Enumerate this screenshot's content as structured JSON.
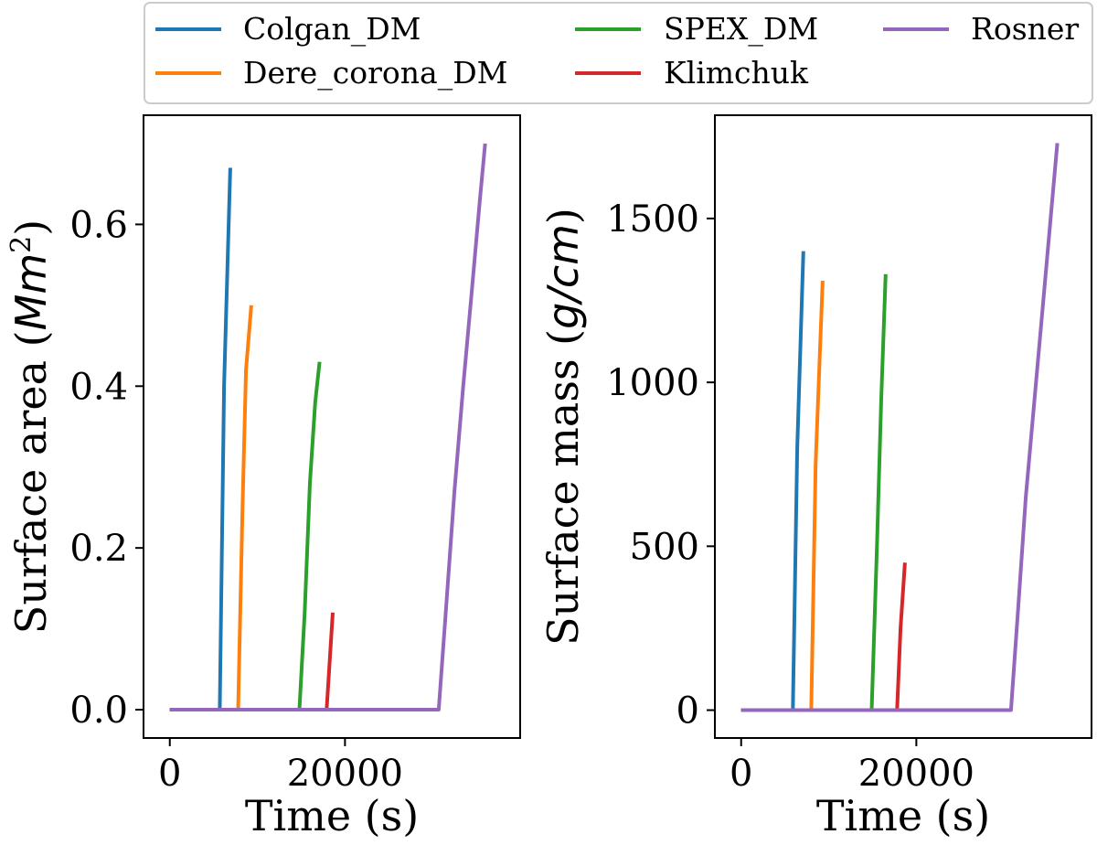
{
  "colors": {
    "Colgan_DM": "#1f77b4",
    "Dere_corona_DM": "#ff7f0e",
    "SPEX_DM": "#2ca02c",
    "Klimchuk": "#d62728",
    "Rosner": "#9467bd"
  },
  "legend": {
    "entries": [
      "Colgan_DM",
      "Dere_corona_DM",
      "SPEX_DM",
      "Klimchuk",
      "Rosner"
    ],
    "placement": "top-center, outside plots"
  },
  "chart_data": [
    {
      "type": "line",
      "xlabel": "Time (s)",
      "ylabel_prefix": "Surface area (",
      "ylabel_unit_base": "Mm",
      "ylabel_unit_exp": "2",
      "ylabel_suffix": ")",
      "xlim": [
        -3000,
        40000
      ],
      "ylim": [
        -0.035,
        0.735
      ],
      "xticks": [
        0,
        20000
      ],
      "xtick_labels": [
        "0",
        "20000"
      ],
      "yticks": [
        0.0,
        0.2,
        0.4,
        0.6
      ],
      "ytick_labels": [
        "0.0",
        "0.2",
        "0.4",
        "0.6"
      ],
      "series": [
        {
          "name": "Colgan_DM",
          "x": [
            0,
            5700,
            6200,
            6900
          ],
          "y": [
            0,
            0,
            0.4,
            0.67
          ]
        },
        {
          "name": "Dere_corona_DM",
          "x": [
            0,
            7800,
            8300,
            8700,
            9300
          ],
          "y": [
            0,
            0,
            0.25,
            0.42,
            0.5
          ]
        },
        {
          "name": "SPEX_DM",
          "x": [
            0,
            14800,
            15400,
            16000,
            16600,
            17100
          ],
          "y": [
            0,
            0,
            0.12,
            0.28,
            0.38,
            0.43
          ]
        },
        {
          "name": "Klimchuk",
          "x": [
            0,
            17900,
            18200,
            18600
          ],
          "y": [
            0,
            0,
            0.05,
            0.12
          ]
        },
        {
          "name": "Rosner",
          "x": [
            0,
            30700,
            31500,
            32500,
            33500,
            34500,
            35400,
            36000
          ],
          "y": [
            0,
            0,
            0.12,
            0.27,
            0.4,
            0.52,
            0.63,
            0.7
          ]
        }
      ]
    },
    {
      "type": "line",
      "xlabel": "Time (s)",
      "ylabel_prefix": "Surface mass (",
      "ylabel_unit_base": "g/cm",
      "ylabel_unit_exp": "",
      "ylabel_suffix": ")",
      "xlim": [
        -3000,
        40000
      ],
      "ylim": [
        -85,
        1815
      ],
      "xticks": [
        0,
        20000
      ],
      "xtick_labels": [
        "0",
        "20000"
      ],
      "yticks": [
        0,
        500,
        1000,
        1500
      ],
      "ytick_labels": [
        "0",
        "500",
        "1000",
        "1500"
      ],
      "series": [
        {
          "name": "Colgan_DM",
          "x": [
            0,
            5900,
            6400,
            7100
          ],
          "y": [
            0,
            0,
            800,
            1400
          ]
        },
        {
          "name": "Dere_corona_DM",
          "x": [
            0,
            8000,
            8500,
            9300
          ],
          "y": [
            0,
            0,
            750,
            1310
          ]
        },
        {
          "name": "SPEX_DM",
          "x": [
            0,
            14900,
            15500,
            16000,
            16500
          ],
          "y": [
            0,
            0,
            500,
            950,
            1330
          ]
        },
        {
          "name": "Klimchuk",
          "x": [
            0,
            17800,
            18200,
            18700
          ],
          "y": [
            0,
            0,
            250,
            450
          ]
        },
        {
          "name": "Rosner",
          "x": [
            0,
            30800,
            31600,
            32500,
            33500,
            34500,
            35400,
            36100
          ],
          "y": [
            0,
            0,
            300,
            650,
            950,
            1250,
            1520,
            1730
          ]
        }
      ]
    }
  ]
}
